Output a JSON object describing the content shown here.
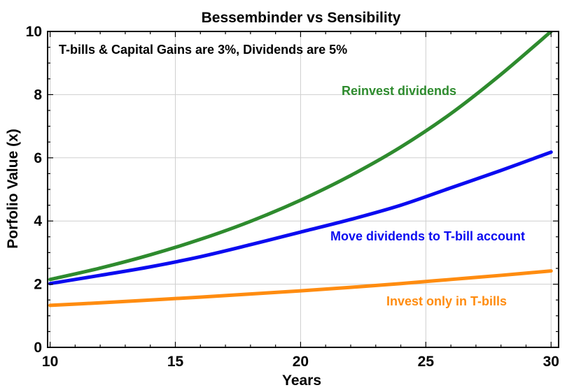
{
  "chart_data": {
    "type": "line",
    "title": "Bessembinder vs Sensibility",
    "xlabel": "Years",
    "ylabel": "Porfolio Value (x)",
    "xlim": [
      9.9,
      30.3
    ],
    "ylim": [
      0,
      10
    ],
    "xticks": [
      10,
      15,
      20,
      25,
      30
    ],
    "yticks": [
      0,
      2,
      4,
      6,
      8,
      10
    ],
    "grid": true,
    "annotations": [
      {
        "text": "T-bills & Capital Gains are 3%, Dividends are 5%",
        "color": "#000000"
      }
    ],
    "series": [
      {
        "name": "Reinvest dividends",
        "color": "#2e8b2e",
        "x": [
          10,
          12,
          14,
          16,
          18,
          20,
          22,
          24,
          26,
          28,
          30
        ],
        "y": [
          2.15,
          2.51,
          2.93,
          3.42,
          3.99,
          4.66,
          5.44,
          6.34,
          7.4,
          8.64,
          10.0
        ]
      },
      {
        "name": "Move dividends to T-bill account",
        "color": "#0b0bf0",
        "x": [
          10,
          12,
          14,
          16,
          18,
          20,
          22,
          24,
          26,
          28,
          30
        ],
        "y": [
          2.02,
          2.28,
          2.55,
          2.87,
          3.25,
          3.65,
          4.05,
          4.5,
          5.05,
          5.6,
          6.18
        ]
      },
      {
        "name": "Invest only in T-bills",
        "color": "#ff8c10",
        "x": [
          10,
          12,
          14,
          16,
          18,
          20,
          22,
          24,
          26,
          28,
          30
        ],
        "y": [
          1.33,
          1.41,
          1.5,
          1.59,
          1.69,
          1.79,
          1.9,
          2.02,
          2.15,
          2.28,
          2.42
        ]
      }
    ]
  }
}
